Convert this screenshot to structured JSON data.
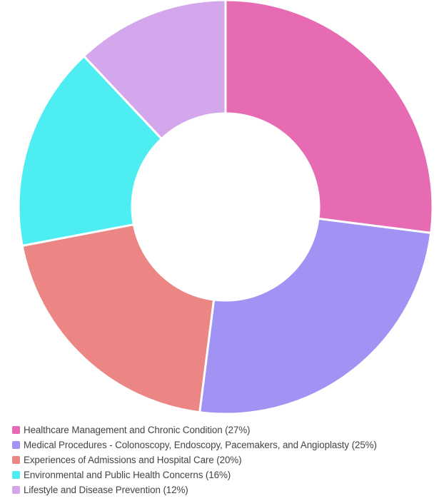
{
  "chart_data": {
    "type": "pie",
    "donut": true,
    "title": "",
    "legend_position": "bottom-left",
    "slices": [
      {
        "label": "Healthcare Management and Chronic Condition (27%)",
        "value": 27,
        "color": "#e66bb3"
      },
      {
        "label": "Medical Procedures - Colonoscopy, Endoscopy, Pacemakers, and Angioplasty (25%)",
        "value": 25,
        "color": "#a193f4"
      },
      {
        "label": "Experiences of Admissions and Hospital Care (20%)",
        "value": 20,
        "color": "#eb8684"
      },
      {
        "label": "Environmental and Public Health Concerns (16%)",
        "value": 16,
        "color": "#4dedf1"
      },
      {
        "label": "Lifestyle and Disease Prevention (12%)",
        "value": 12,
        "color": "#d4a6eb"
      }
    ]
  }
}
